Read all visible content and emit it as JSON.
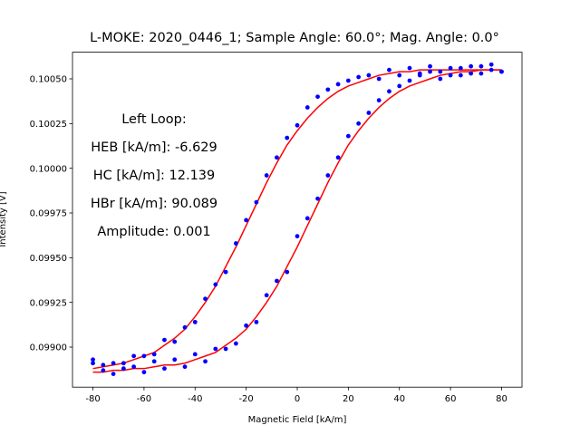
{
  "chart_data": {
    "type": "scatter",
    "title": "L-MOKE: 2020_0446_1; Sample Angle: 60.0°; Mag. Angle: 0.0°",
    "xlabel": "Magnetic Field [kA/m]",
    "ylabel": "Intensity [V]",
    "annotations": [
      "Left Loop:",
      "HEB [kA/m]: -6.629",
      "HC [kA/m]: 12.139",
      "HBr [kA/m]: 90.089",
      "Amplitude: 0.001"
    ],
    "xlim": [
      -88,
      88
    ],
    "xticks": [
      -80,
      -60,
      -40,
      -20,
      0,
      20,
      40,
      60,
      80
    ],
    "ylim": [
      0.098776,
      0.100649
    ],
    "yticks": [
      {
        "value": 0.099,
        "label": "0.09900"
      },
      {
        "value": 0.09925,
        "label": "0.09925"
      },
      {
        "value": 0.0995,
        "label": "0.09950"
      },
      {
        "value": 0.09975,
        "label": "0.09975"
      },
      {
        "value": 0.1,
        "label": "0.10000"
      },
      {
        "value": 0.10025,
        "label": "0.10025"
      },
      {
        "value": 0.1005,
        "label": "0.10050"
      }
    ],
    "grid": false,
    "x": [
      -80,
      -76,
      -72,
      -68,
      -64,
      -60,
      -56,
      -52,
      -48,
      -44,
      -40,
      -36,
      -32,
      -28,
      -24,
      -20,
      -16,
      -12,
      -8,
      -4,
      0,
      4,
      8,
      12,
      16,
      20,
      24,
      28,
      32,
      36,
      40,
      44,
      48,
      52,
      56,
      60,
      64,
      68,
      72,
      76,
      80
    ],
    "series": [
      {
        "mode": "markers",
        "color": "#0000ff",
        "values": [
          0.09891,
          0.09887,
          0.09891,
          0.09888,
          0.09895,
          0.09895,
          0.09896,
          0.09904,
          0.09903,
          0.09911,
          0.09914,
          0.09927,
          0.09935,
          0.09942,
          0.09958,
          0.09971,
          0.09981,
          0.09996,
          0.10006,
          0.10017,
          0.10024,
          0.10034,
          0.1004,
          0.10044,
          0.10047,
          0.10049,
          0.10051,
          0.10052,
          0.1005,
          0.10055,
          0.10052,
          0.10056,
          0.10053,
          0.10057,
          0.10054,
          0.10052,
          0.10056,
          0.10053,
          0.10057,
          0.10055,
          0.10054
        ]
      },
      {
        "mode": "markers",
        "color": "#0000ff",
        "values": [
          0.09893,
          0.0989,
          0.09885,
          0.09891,
          0.09889,
          0.09886,
          0.09892,
          0.09888,
          0.09893,
          0.09889,
          0.09896,
          0.09892,
          0.09899,
          0.09899,
          0.09902,
          0.09912,
          0.09914,
          0.09929,
          0.09937,
          0.09942,
          0.09962,
          0.09972,
          0.09983,
          0.09996,
          0.10006,
          0.10018,
          0.10025,
          0.10031,
          0.10038,
          0.10043,
          0.10046,
          0.10049,
          0.10052,
          0.10054,
          0.1005,
          0.10056,
          0.10052,
          0.10057,
          0.10053,
          0.10058,
          0.10054
        ]
      },
      {
        "mode": "line",
        "color": "#ff0000",
        "values": [
          0.09888,
          0.09889,
          0.0989,
          0.09891,
          0.09893,
          0.09895,
          0.09897,
          0.09901,
          0.09905,
          0.0991,
          0.09917,
          0.09925,
          0.09934,
          0.09945,
          0.09956,
          0.09968,
          0.0998,
          0.09992,
          0.10003,
          0.10013,
          0.10021,
          0.10028,
          0.10034,
          0.10039,
          0.10043,
          0.10046,
          0.10048,
          0.1005,
          0.10052,
          0.10053,
          0.10054,
          0.10054,
          0.10055,
          0.10055,
          0.10055,
          0.10055,
          0.10055,
          0.10055,
          0.10055,
          0.10055,
          0.10055
        ]
      },
      {
        "mode": "line",
        "color": "#ff0000",
        "values": [
          0.09886,
          0.09886,
          0.09887,
          0.09887,
          0.09888,
          0.09888,
          0.09889,
          0.0989,
          0.0989,
          0.09891,
          0.09893,
          0.09895,
          0.09897,
          0.09901,
          0.09905,
          0.0991,
          0.09917,
          0.09925,
          0.09934,
          0.09945,
          0.09956,
          0.09968,
          0.0998,
          0.09992,
          0.10003,
          0.10013,
          0.10021,
          0.10028,
          0.10034,
          0.10039,
          0.10043,
          0.10046,
          0.10048,
          0.1005,
          0.10052,
          0.10053,
          0.10054,
          0.10054,
          0.10055,
          0.10055,
          0.10055
        ]
      }
    ]
  }
}
